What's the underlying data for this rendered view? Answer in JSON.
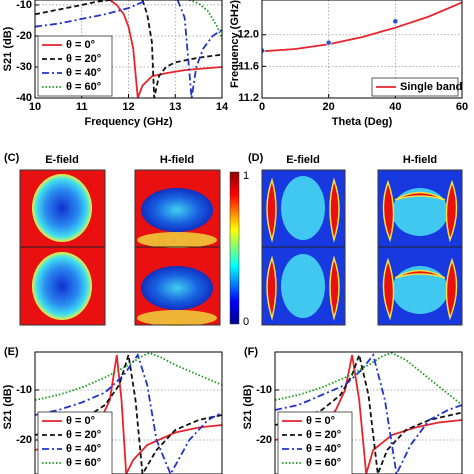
{
  "chart_data": [
    {
      "type": "line",
      "xlabel": "Frequency (GHz)",
      "ylabel": "S21 (dB)",
      "xlim": [
        10,
        14
      ],
      "ylim": [
        -40,
        -8.4
      ],
      "xticks": [
        10,
        11,
        12,
        13,
        14
      ],
      "yticks": [
        -40,
        -30,
        -20,
        -10
      ],
      "grid": true,
      "legend": "lower left",
      "series": [
        {
          "name": "θ = 0°",
          "color": "#e8232b",
          "dash": "solid",
          "x": [
            11.6,
            11.75,
            11.9,
            12.0,
            12.1,
            12.2,
            12.3,
            12.5,
            12.8,
            13.2,
            13.6,
            14
          ],
          "values": [
            -8.4,
            -10,
            -13,
            -17,
            -24,
            -40,
            -36,
            -33,
            -32,
            -31,
            -30.5,
            -30
          ]
        },
        {
          "name": "θ = 20°",
          "color": "#111111",
          "dash": "dashed",
          "x": [
            10,
            10.5,
            11,
            11.3,
            11.6,
            null,
            12.3,
            12.4,
            12.5,
            12.55,
            12.65,
            12.8,
            13,
            13.5,
            14
          ],
          "values": [
            -13,
            -11.5,
            -10,
            -9,
            -8.4,
            null,
            -8.4,
            -13,
            -22,
            -40,
            -33,
            -30,
            -28.5,
            -27,
            -26
          ]
        },
        {
          "name": "θ = 40°",
          "color": "#2233cc",
          "dash": "dashdot",
          "x": [
            10,
            10.5,
            11,
            11.5,
            12,
            12.4,
            null,
            13.05,
            13.2,
            13.35,
            13.45,
            13.6,
            13.8,
            14
          ],
          "values": [
            -17,
            -16,
            -14.5,
            -13,
            -11,
            -8.4,
            null,
            -8.4,
            -14,
            -40,
            -30,
            -24,
            -20,
            -18
          ]
        },
        {
          "name": "θ = 60°",
          "color": "#1a9a1a",
          "dash": "dotted",
          "x": [
            13.3,
            13.5,
            13.7,
            13.9,
            14
          ],
          "values": [
            -8.4,
            -9.5,
            -12,
            -17,
            -21
          ]
        }
      ]
    },
    {
      "type": "line",
      "xlabel": "Theta (Deg)",
      "ylabel": "Frequency (GHz)",
      "xlim": [
        0,
        60
      ],
      "ylim": [
        11.2,
        12.44
      ],
      "xticks": [
        0,
        20,
        40,
        60
      ],
      "yticks": [
        11.2,
        11.6,
        {
          "value": 12,
          "label": "12.0"
        }
      ],
      "grid": true,
      "legend": "lower right",
      "series": [
        {
          "name": "Single band",
          "color": "#e8232b",
          "dash": "solid",
          "x": [
            0,
            10,
            20,
            30,
            40,
            50,
            60
          ],
          "values": [
            11.79,
            11.82,
            11.88,
            11.97,
            12.09,
            12.23,
            12.41
          ]
        }
      ],
      "markers": {
        "color": "#2a52d6",
        "x": [
          0,
          20,
          40
        ],
        "values": [
          11.8,
          11.9,
          12.17
        ]
      }
    },
    {
      "type": "line",
      "panel_label": "(E)",
      "ylabel": "S21 (dB)",
      "xlim": [
        10,
        14
      ],
      "ylim": [
        -26.8,
        -2.4
      ],
      "xticks": [],
      "yticks": [
        -10,
        -20
      ],
      "grid": true,
      "legend": "lower left",
      "series": [
        {
          "name": "θ = 0°",
          "color": "#e8232b",
          "dash": "solid",
          "x": [
            10,
            10.5,
            11,
            11.4,
            11.6,
            11.75,
            11.85,
            11.95,
            12.1,
            12.4,
            13,
            13.5,
            14
          ],
          "values": [
            -22,
            -21,
            -19,
            -16,
            -12,
            -3,
            -12,
            -26.8,
            -24,
            -21,
            -18.5,
            -17.5,
            -17
          ]
        },
        {
          "name": "θ = 20°",
          "color": "#111111",
          "dash": "dashed",
          "x": [
            10,
            10.5,
            11,
            11.5,
            11.8,
            12.0,
            12.15,
            12.3,
            12.6,
            13,
            13.5,
            14
          ],
          "values": [
            -19,
            -18,
            -16,
            -13,
            -9,
            -3,
            -12,
            -26.8,
            -22,
            -18,
            -16,
            -15
          ]
        },
        {
          "name": "θ = 40°",
          "color": "#2233cc",
          "dash": "dashdot",
          "x": [
            10,
            10.5,
            11,
            11.5,
            11.9,
            12.2,
            12.4,
            12.6,
            12.9,
            13.3,
            13.7,
            14
          ],
          "values": [
            -15,
            -14,
            -12.5,
            -10.5,
            -7,
            -3,
            -9,
            -20,
            -26.8,
            -20,
            -16,
            -14.5
          ]
        },
        {
          "name": "θ = 60°",
          "color": "#1a9a1a",
          "dash": "dotted",
          "x": [
            10,
            10.5,
            11,
            11.5,
            12,
            12.3,
            12.45,
            12.7,
            13,
            13.5,
            14
          ],
          "values": [
            -12,
            -11,
            -9.5,
            -7.5,
            -5,
            -3.2,
            -2.6,
            -3.5,
            -5,
            -7,
            -9
          ]
        }
      ]
    },
    {
      "type": "line",
      "panel_label": "(F)",
      "ylabel": "S21 (dB)",
      "xlim": [
        10,
        14
      ],
      "ylim": [
        -26.8,
        -2.4
      ],
      "xticks": [],
      "yticks": [
        -10,
        -20
      ],
      "grid": true,
      "legend": "lower left",
      "series": [
        {
          "name": "θ = 0°",
          "color": "#e8232b",
          "dash": "solid",
          "x": [
            10,
            10.5,
            11,
            11.3,
            11.5,
            11.65,
            11.8,
            11.95,
            12.1,
            12.5,
            13,
            13.5,
            14
          ],
          "values": [
            -20,
            -19,
            -17,
            -14,
            -10,
            -3,
            -12,
            -26.8,
            -22,
            -19,
            -17.5,
            -16.5,
            -16
          ]
        },
        {
          "name": "θ = 20°",
          "color": "#111111",
          "dash": "dashed",
          "x": [
            10,
            10.5,
            11,
            11.4,
            11.65,
            11.8,
            12.0,
            12.2,
            12.4,
            12.8,
            13.3,
            14
          ],
          "values": [
            -17,
            -16,
            -14,
            -11,
            -7,
            -3,
            -11,
            -26.8,
            -22,
            -18,
            -16,
            -14.5
          ]
        },
        {
          "name": "θ = 40°",
          "color": "#2233cc",
          "dash": "dashdot",
          "x": [
            10,
            10.5,
            11,
            11.5,
            11.85,
            12.1,
            12.35,
            12.6,
            12.9,
            13.3,
            13.7,
            14
          ],
          "values": [
            -14,
            -13,
            -11,
            -9,
            -6,
            -3,
            -12,
            -26.8,
            -21,
            -16,
            -14,
            -13
          ]
        },
        {
          "name": "θ = 60°",
          "color": "#1a9a1a",
          "dash": "dotted",
          "x": [
            10,
            10.5,
            11,
            11.5,
            12,
            12.3,
            12.5,
            12.8,
            13.2,
            13.6,
            14
          ],
          "values": [
            -12,
            -11,
            -9.5,
            -7.5,
            -5,
            -3.2,
            -2.6,
            -4,
            -7,
            -10,
            -13
          ]
        }
      ]
    }
  ],
  "field_maps": {
    "panels": [
      {
        "label": "(C)",
        "titles": [
          "E-field",
          "H-field"
        ]
      },
      {
        "label": "(D)",
        "titles": [
          "E-field",
          "H-field"
        ]
      }
    ],
    "colorbar": {
      "max": 1,
      "min": 0
    }
  }
}
